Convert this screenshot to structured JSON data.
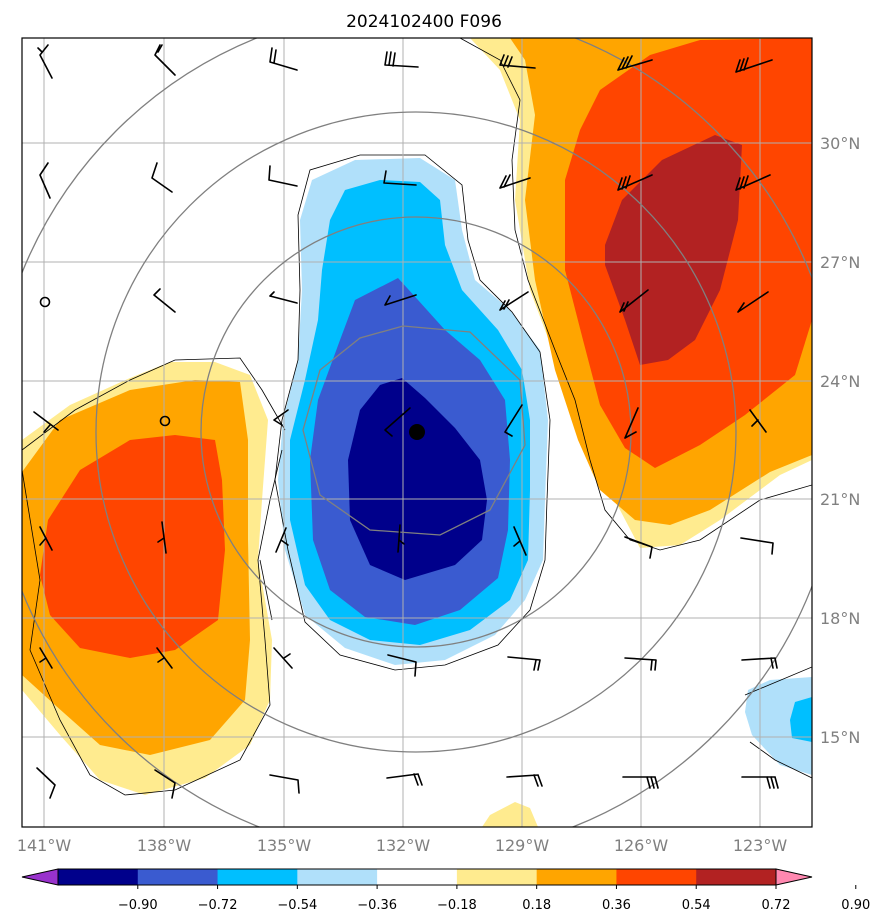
{
  "title": "2024102400 F096",
  "lon_labels": [
    "141°W",
    "138°W",
    "135°W",
    "132°W",
    "129°W",
    "126°W",
    "123°W"
  ],
  "lat_labels": [
    "30°N",
    "27°N",
    "24°N",
    "21°N",
    "18°N",
    "15°N"
  ],
  "colorbar": {
    "ticks": [
      "−0.90",
      "−0.72",
      "−0.54",
      "−0.36",
      "−0.18",
      "0.18",
      "0.36",
      "0.54",
      "0.72",
      "0.90"
    ],
    "colors": [
      "#9932cc",
      "#00008b",
      "#3a5bd0",
      "#00bfff",
      "#b0e0fa",
      "#ffffff",
      "#ffeb8f",
      "#ffa500",
      "#ff4500",
      "#b22222",
      "#ff88b0"
    ]
  },
  "storm_center": {
    "lon": -131.6,
    "lat": 22.7
  }
}
